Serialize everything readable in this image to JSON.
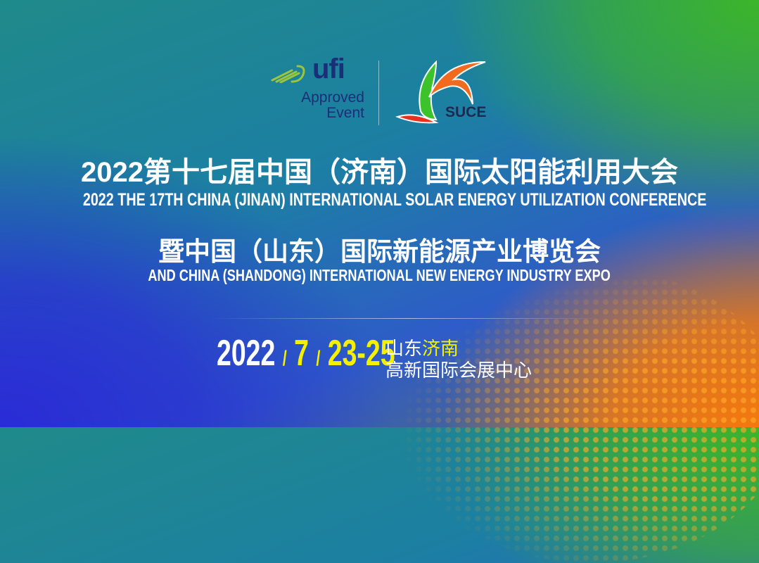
{
  "logos": {
    "ufi": {
      "name": "ufi",
      "line1": "Approved",
      "line2": "Event"
    },
    "suce": {
      "name": "SUCE"
    }
  },
  "title": {
    "cn_line1": "2022第十七届中国（济南）国际太阳能利用大会",
    "en_line1": "2022 THE 17TH CHINA (JINAN) INTERNATIONAL SOLAR ENERGY UTILIZATION CONFERENCE",
    "cn_line2": "暨中国（山东）国际新能源产业博览会",
    "en_line2": "AND CHINA (SHANDONG) INTERNATIONAL NEW ENERGY INDUSTRY EXPO"
  },
  "event": {
    "year": "2022",
    "slash": "/",
    "month": "7",
    "days": "23-25",
    "venue_province": "山东",
    "venue_city": "济南",
    "venue_name": "高新国际会展中心"
  },
  "colors": {
    "accent_yellow": "#f5f000",
    "blue": "#2a2bd6",
    "green": "#3db52a",
    "orange": "#f5780e",
    "navy": "#1a2f78"
  }
}
